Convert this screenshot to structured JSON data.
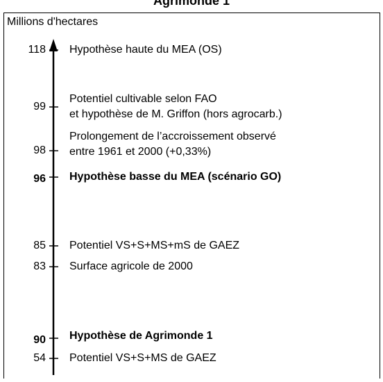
{
  "title": "Agrimonde 1",
  "axis_label": "Millions d'hectares",
  "items": [
    {
      "value": 118,
      "lines": [
        "Hypothèse haute du MEA (OS)"
      ],
      "bold": false
    },
    {
      "value": 99,
      "lines": [
        "Potentiel cultivable selon FAO",
        "et hypothèse de M. Griffon (hors agrocarb.)"
      ],
      "bold": false
    },
    {
      "value": 98,
      "lines": [
        "Prolongement de l’accroissement observé",
        "entre 1961 et 2000 (+0,33%)"
      ],
      "bold": false
    },
    {
      "value": 96,
      "lines": [
        "Hypothèse basse du MEA (scénario GO)"
      ],
      "bold": true
    },
    {
      "value": 85,
      "lines": [
        "Potentiel VS+S+MS+mS de GAEZ"
      ],
      "bold": false
    },
    {
      "value": 83,
      "lines": [
        "Surface agricole de 2000"
      ],
      "bold": false
    },
    {
      "value": 90,
      "lines": [
        "Hypothèse de Agrimonde 1"
      ],
      "bold": true
    },
    {
      "value": 54,
      "lines": [
        "Potentiel VS+S+MS de GAEZ"
      ],
      "bold": false
    }
  ]
}
